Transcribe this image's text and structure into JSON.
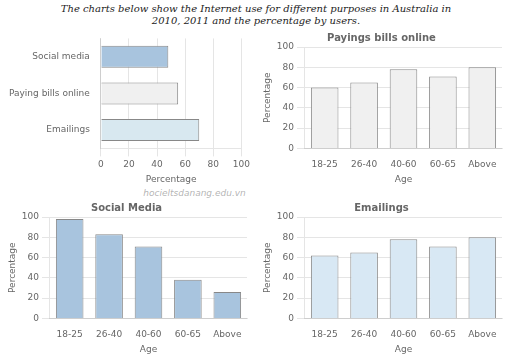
{
  "title": [
    "The charts below show the Internet use for different purposes in Australia in",
    "2010, 2011 and the percentage by users."
  ],
  "annotations": [
    "hocieltsdanang.edu.vn"
  ],
  "chart_data": [
    {
      "type": "bar",
      "orientation": "horizontal",
      "categories": [
        "Social media",
        "Paying bills online",
        "Emailings"
      ],
      "values": [
        48,
        55,
        70
      ],
      "colors": [
        "#a8c4de",
        "#f0f0f0",
        "#d8e8f0"
      ],
      "xlabel": "Percentage",
      "xlim": [
        0,
        100
      ],
      "xticks": [
        0,
        20,
        40,
        60,
        80,
        100
      ],
      "grid": true
    },
    {
      "type": "bar",
      "title": "Payings bills online",
      "categories": [
        "18-25",
        "26-40",
        "40-60",
        "60-65",
        "Above"
      ],
      "values": [
        60,
        65,
        78,
        71,
        80
      ],
      "color": "#f0f0f0",
      "xlabel": "Age",
      "ylabel": "Percentage",
      "ylim": [
        0,
        100
      ],
      "yticks": [
        0,
        20,
        40,
        60,
        80,
        100
      ],
      "grid": true
    },
    {
      "type": "bar",
      "title": "Social Media",
      "categories": [
        "18-25",
        "26-40",
        "40-60",
        "60-65",
        "Above"
      ],
      "values": [
        98,
        83,
        71,
        38,
        26
      ],
      "color": "#a8c4de",
      "xlabel": "Age",
      "ylabel": "Percentage",
      "ylim": [
        0,
        100
      ],
      "yticks": [
        0,
        20,
        40,
        60,
        80,
        100
      ],
      "grid": true
    },
    {
      "type": "bar",
      "title": "Emailings",
      "categories": [
        "18-25",
        "26-40",
        "40-60",
        "60-65",
        "Above"
      ],
      "values": [
        62,
        65,
        78,
        71,
        80
      ],
      "color": "#d8e8f4",
      "xlabel": "Age",
      "ylabel": "Percentage",
      "ylim": [
        0,
        100
      ],
      "yticks": [
        0,
        20,
        40,
        60,
        80,
        100
      ],
      "grid": true
    }
  ]
}
